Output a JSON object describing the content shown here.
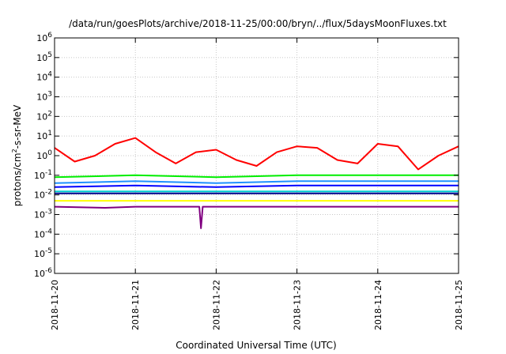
{
  "chart_data": {
    "type": "line",
    "title": "/data/run/goesPlots/archive/2018-11-25/00:00/bryn/../flux/5daysMoonFluxes.txt",
    "xlabel": "Coordinated Universal Time (UTC)",
    "ylabel": {
      "main": "protons/cm",
      "sup": "2",
      "rest": "-s-sr-MeV"
    },
    "y_scale": "log",
    "ylim": [
      1e-06,
      1000000.0
    ],
    "y_ticks": [
      {
        "value": 1e-06,
        "exp": "-6"
      },
      {
        "value": 1e-05,
        "exp": "-5"
      },
      {
        "value": 0.0001,
        "exp": "-4"
      },
      {
        "value": 0.001,
        "exp": "-3"
      },
      {
        "value": 0.01,
        "exp": "-2"
      },
      {
        "value": 0.1,
        "exp": "-1"
      },
      {
        "value": 1,
        "exp": "0"
      },
      {
        "value": 10,
        "exp": "1"
      },
      {
        "value": 100,
        "exp": "2"
      },
      {
        "value": 1000,
        "exp": "3"
      },
      {
        "value": 10000,
        "exp": "4"
      },
      {
        "value": 100000,
        "exp": "5"
      },
      {
        "value": 1000000,
        "exp": "6"
      }
    ],
    "xlim": [
      "2018-11-20",
      "2018-11-25"
    ],
    "x_ticks": [
      "2018-11-20",
      "2018-11-21",
      "2018-11-22",
      "2018-11-23",
      "2018-11-24",
      "2018-11-25"
    ],
    "grid": true,
    "legend": "none",
    "series": [
      {
        "color": "#ff0000",
        "x": [
          "2018-11-20",
          "2018-11-20T06:00",
          "2018-11-20T12:00",
          "2018-11-20T18:00",
          "2018-11-21",
          "2018-11-21T06:00",
          "2018-11-21T12:00",
          "2018-11-21T18:00",
          "2018-11-22",
          "2018-11-22T06:00",
          "2018-11-22T12:00",
          "2018-11-22T18:00",
          "2018-11-23",
          "2018-11-23T06:00",
          "2018-11-23T12:00",
          "2018-11-23T18:00",
          "2018-11-24",
          "2018-11-24T06:00",
          "2018-11-24T12:00",
          "2018-11-24T18:00",
          "2018-11-25"
        ],
        "values": [
          2.5,
          0.5,
          1,
          4,
          8,
          1.5,
          0.4,
          1.5,
          2,
          0.6,
          0.3,
          1.5,
          3,
          2.5,
          0.6,
          0.4,
          4,
          3,
          0.2,
          1,
          3
        ]
      },
      {
        "color": "#00ee00",
        "x": [
          "2018-11-20",
          "2018-11-21",
          "2018-11-22",
          "2018-11-23",
          "2018-11-24",
          "2018-11-25"
        ],
        "values": [
          0.08,
          0.1,
          0.08,
          0.1,
          0.1,
          0.1
        ]
      },
      {
        "color": "#1e90ff",
        "x": [
          "2018-11-20",
          "2018-11-21",
          "2018-11-22",
          "2018-11-23",
          "2018-11-24",
          "2018-11-25"
        ],
        "values": [
          0.04,
          0.05,
          0.04,
          0.05,
          0.05,
          0.05
        ]
      },
      {
        "color": "#0000ff",
        "x": [
          "2018-11-20",
          "2018-11-21",
          "2018-11-22",
          "2018-11-23",
          "2018-11-24",
          "2018-11-25"
        ],
        "values": [
          0.025,
          0.03,
          0.025,
          0.03,
          0.03,
          0.03
        ]
      },
      {
        "color": "#00ced1",
        "x": [
          "2018-11-20",
          "2018-11-21",
          "2018-11-22",
          "2018-11-23",
          "2018-11-24",
          "2018-11-25"
        ],
        "values": [
          0.015,
          0.015,
          0.015,
          0.015,
          0.015,
          0.015
        ]
      },
      {
        "color": "#00008b",
        "x": [
          "2018-11-20",
          "2018-11-21",
          "2018-11-22",
          "2018-11-23",
          "2018-11-24",
          "2018-11-25"
        ],
        "values": [
          0.012,
          0.012,
          0.012,
          0.012,
          0.012,
          0.012
        ]
      },
      {
        "color": "#ffff00",
        "x": [
          "2018-11-20",
          "2018-11-21",
          "2018-11-22",
          "2018-11-23",
          "2018-11-24",
          "2018-11-25"
        ],
        "values": [
          0.005,
          0.005,
          0.005,
          0.005,
          0.005,
          0.005
        ]
      },
      {
        "color": "#800080",
        "x": [
          "2018-11-20",
          "2018-11-20T15:00",
          "2018-11-21",
          "2018-11-21T19:00",
          "2018-11-21T19:30",
          "2018-11-21T20:00",
          "2018-11-22",
          "2018-11-23",
          "2018-11-24",
          "2018-11-25"
        ],
        "values": [
          0.0025,
          0.0022,
          0.0025,
          0.0025,
          0.0002,
          0.0025,
          0.0025,
          0.0025,
          0.0025,
          0.0025
        ]
      }
    ]
  }
}
